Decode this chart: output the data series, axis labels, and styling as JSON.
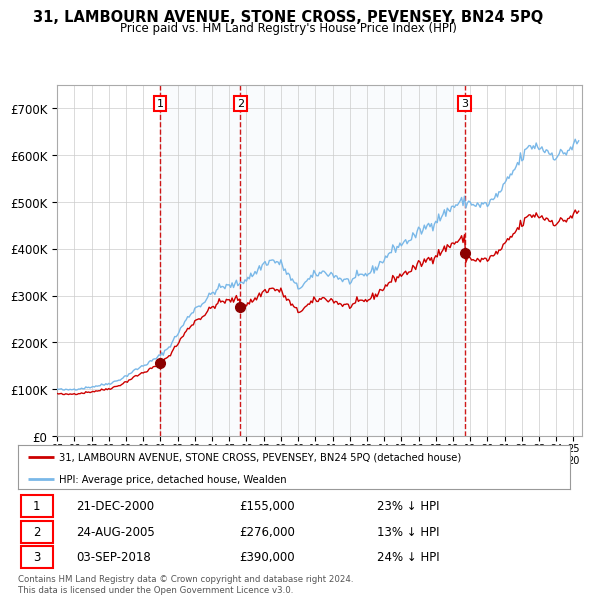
{
  "title": "31, LAMBOURN AVENUE, STONE CROSS, PEVENSEY, BN24 5PQ",
  "subtitle": "Price paid vs. HM Land Registry's House Price Index (HPI)",
  "ylim": [
    0,
    750000
  ],
  "yticks": [
    0,
    100000,
    200000,
    300000,
    400000,
    500000,
    600000,
    700000
  ],
  "ytick_labels": [
    "£0",
    "£100K",
    "£200K",
    "£300K",
    "£400K",
    "£500K",
    "£600K",
    "£700K"
  ],
  "sale_dates_decimal": [
    2000.97,
    2005.65,
    2018.68
  ],
  "sale_prices": [
    155000,
    276000,
    390000
  ],
  "sale_labels": [
    "1",
    "2",
    "3"
  ],
  "hpi_color": "#7ab8e8",
  "hpi_fill_color": "#daeaf7",
  "sale_color": "#cc0000",
  "vline_color": "#cc0000",
  "legend_label_sale": "31, LAMBOURN AVENUE, STONE CROSS, PEVENSEY, BN24 5PQ (detached house)",
  "legend_label_hpi": "HPI: Average price, detached house, Wealden",
  "table_rows": [
    [
      "1",
      "21-DEC-2000",
      "£155,000",
      "23% ↓ HPI"
    ],
    [
      "2",
      "24-AUG-2005",
      "£276,000",
      "13% ↓ HPI"
    ],
    [
      "3",
      "03-SEP-2018",
      "£390,000",
      "24% ↓ HPI"
    ]
  ],
  "footnote": "Contains HM Land Registry data © Crown copyright and database right 2024.\nThis data is licensed under the Open Government Licence v3.0.",
  "background_color": "#ffffff",
  "grid_color": "#cccccc",
  "xlim_start": 1995.0,
  "xlim_end": 2025.5
}
